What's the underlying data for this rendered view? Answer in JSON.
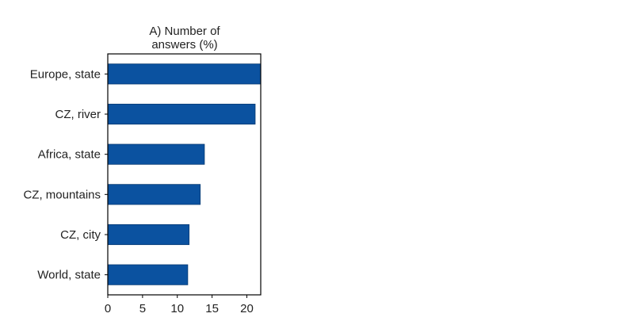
{
  "chart_data": {
    "type": "bar",
    "orientation": "horizontal",
    "title": "A) Number of answers (%)",
    "title_lines": [
      "A) Number of",
      "answers (%)"
    ],
    "categories": [
      "Europe, state",
      "CZ, river",
      "Africa, state",
      "CZ, mountains",
      "CZ, city",
      "World, state"
    ],
    "values": [
      22.0,
      21.2,
      13.9,
      13.3,
      11.7,
      11.5
    ],
    "xlim": [
      0,
      22
    ],
    "xticks": [
      0,
      5,
      10,
      15,
      20
    ],
    "bar_color": "#0b52a0",
    "bar_edge_color": "#083a72",
    "grid": false,
    "legend": "none"
  }
}
